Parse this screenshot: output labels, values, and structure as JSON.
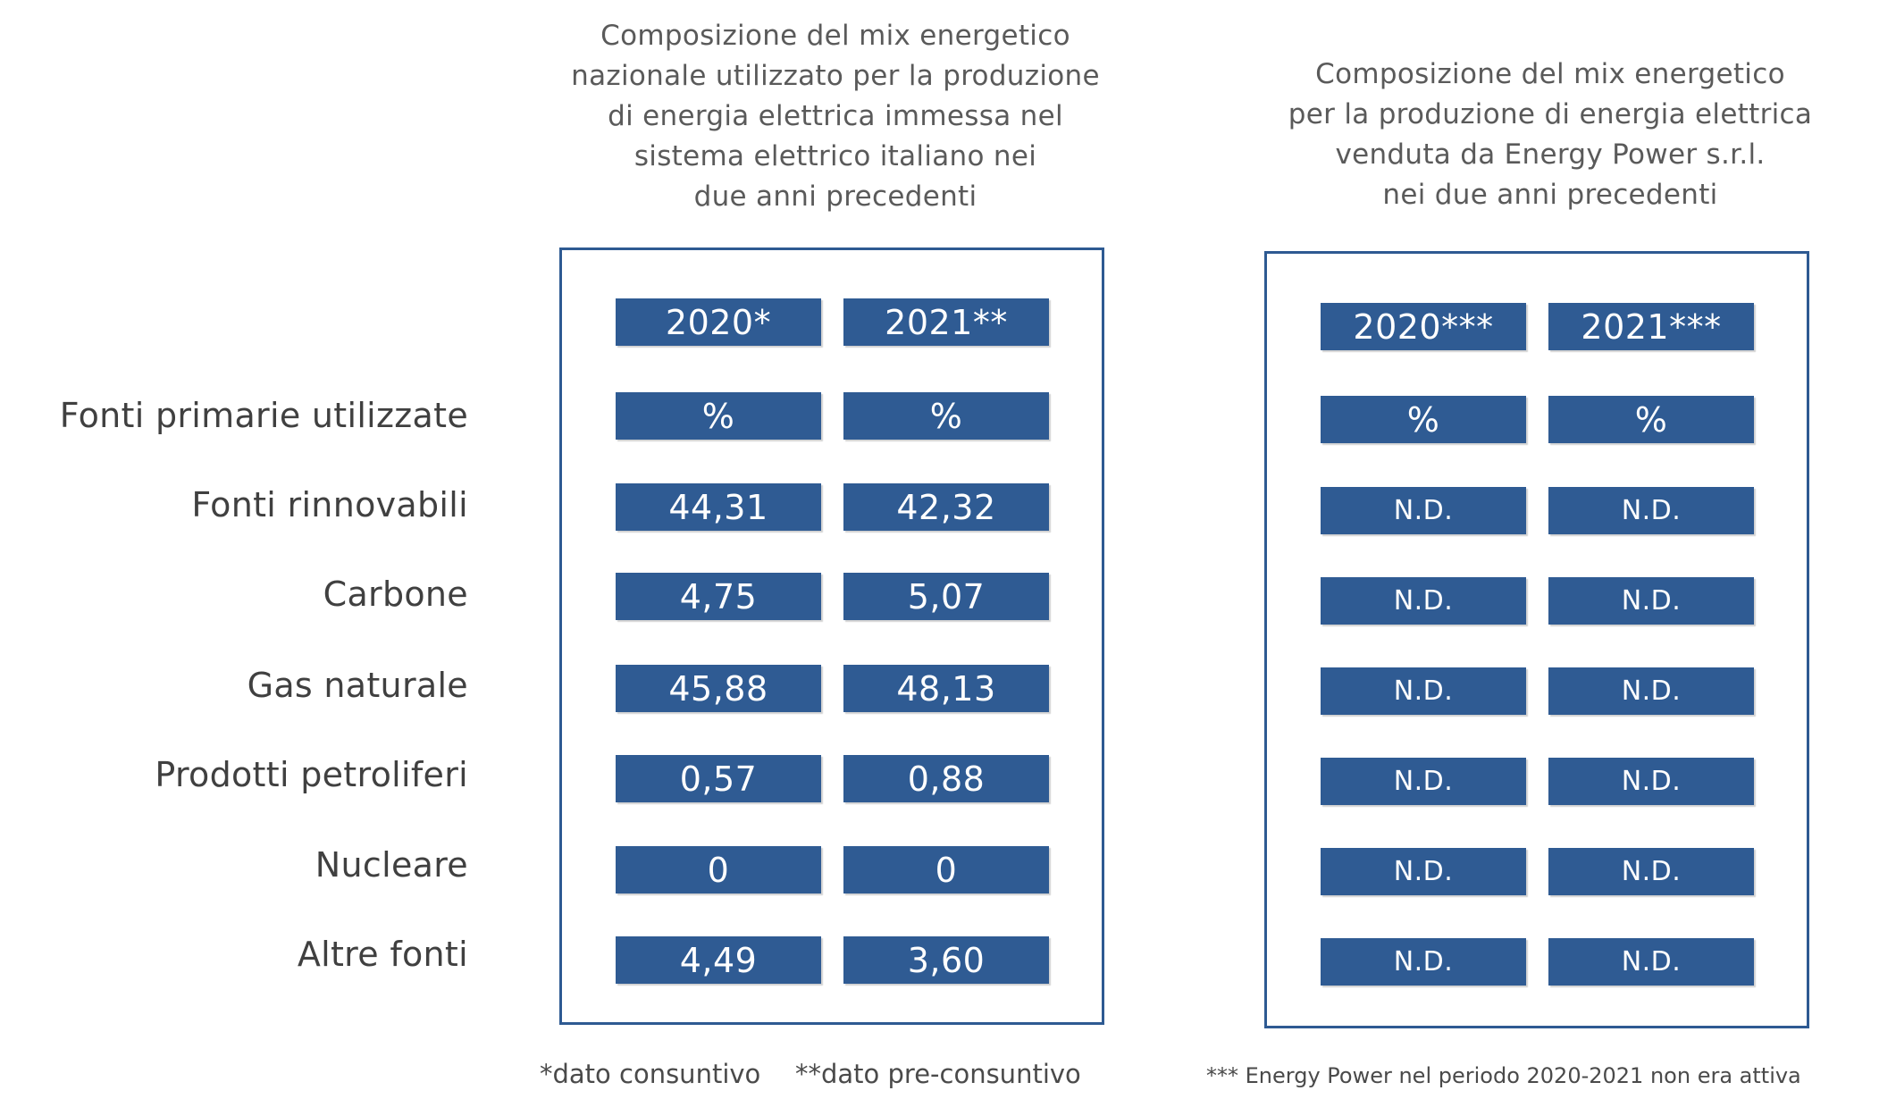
{
  "left_panel": {
    "title": "Composizione del mix energetico\nnazionale utilizzato per la produzione\ndi energia elettrica immessa nel\nsistema elettrico italiano nei\ndue anni precedenti",
    "headers": [
      "2020*",
      "2021**"
    ],
    "units": [
      "%",
      "%"
    ],
    "values": [
      [
        "44,31",
        "42,32"
      ],
      [
        "4,75",
        "5,07"
      ],
      [
        "45,88",
        "48,13"
      ],
      [
        "0,57",
        "0,88"
      ],
      [
        "0",
        "0"
      ],
      [
        "4,49",
        "3,60"
      ]
    ],
    "notes": [
      "*dato consuntivo",
      "**dato pre-consuntivo"
    ]
  },
  "right_panel": {
    "title": "Composizione del mix energetico\nper la produzione di energia elettrica\nvenduta da Energy Power s.r.l.\nnei due anni precedenti",
    "headers": [
      "2020***",
      "2021***"
    ],
    "units": [
      "%",
      "%"
    ],
    "values": [
      [
        "N.D.",
        "N.D."
      ],
      [
        "N.D.",
        "N.D."
      ],
      [
        "N.D.",
        "N.D."
      ],
      [
        "N.D.",
        "N.D."
      ],
      [
        "N.D.",
        "N.D."
      ],
      [
        "N.D.",
        "N.D."
      ]
    ],
    "note": "*** Energy Power nel periodo 2020-2021 non era attiva"
  },
  "row_labels": [
    "Fonti primarie utilizzate",
    "Fonti rinnovabili",
    "Carbone",
    "Gas naturale",
    "Prodotti petroliferi",
    "Nucleare",
    "Altre fonti"
  ],
  "colors": {
    "accent": "#2f5b93",
    "border": "#2e5a92",
    "text": "#404040"
  }
}
